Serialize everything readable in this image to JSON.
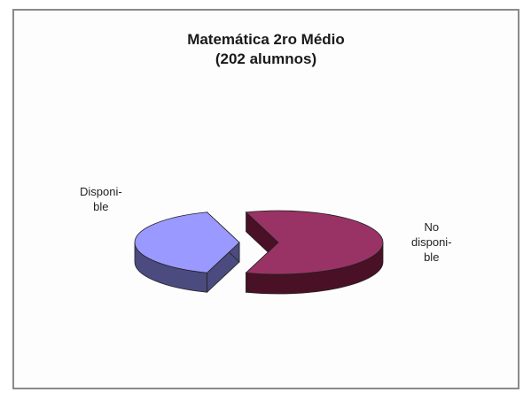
{
  "chart_data": {
    "type": "pie",
    "title": "Matemática 2ro Médio",
    "subtitle": "(202 alumnos)",
    "categories": [
      "Disponible",
      "No disponible"
    ],
    "values": [
      40,
      60
    ],
    "labels": [
      {
        "lines": [
          "Disponi-",
          "ble"
        ]
      },
      {
        "lines": [
          "No",
          "disponi-",
          "ble"
        ]
      }
    ],
    "colors": [
      "#9999ff",
      "#993366"
    ],
    "side_colors": [
      "#4b4b80",
      "#4a1025"
    ],
    "style": "3d-exploded",
    "legend": "none"
  }
}
